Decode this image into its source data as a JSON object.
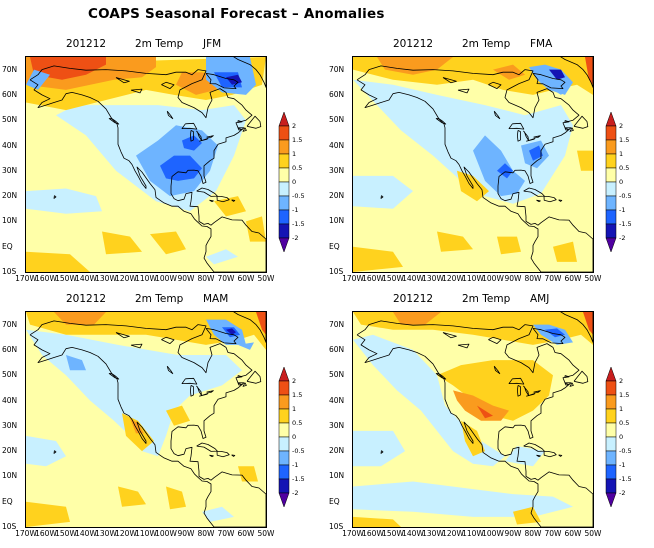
{
  "title": "COAPS Seasonal Forecast – Anomalies",
  "panels": [
    {
      "date": "201212",
      "variable": "2m Temp",
      "season": "JFM"
    },
    {
      "date": "201212",
      "variable": "2m Temp",
      "season": "FMA"
    },
    {
      "date": "201212",
      "variable": "2m Temp",
      "season": "MAM"
    },
    {
      "date": "201212",
      "variable": "2m Temp",
      "season": "AMJ"
    }
  ],
  "lat_labels": [
    "70N",
    "60N",
    "50N",
    "40N",
    "30N",
    "20N",
    "10N",
    "EQ",
    "10S"
  ],
  "lon_labels": [
    "170W",
    "160W",
    "150W",
    "140W",
    "130W",
    "120W",
    "110W",
    "100W",
    "90W",
    "80W",
    "70W",
    "60W",
    "50W"
  ],
  "colorbar_labels": [
    "2",
    "1.5",
    "1",
    "0.5",
    "0",
    "-0.5",
    "-1",
    "-1.5",
    "-2"
  ],
  "colorbar_colors": [
    "#c81e1e",
    "#ee5014",
    "#fa9b1e",
    "#ffd21e",
    "#ffffa8",
    "#c8f0ff",
    "#6eb4ff",
    "#1e64ff",
    "#1414b4",
    "#5000a0"
  ],
  "colors": {
    "neutral": "#ffffa8",
    "warm_weak": "#ffd21e",
    "warm": "#fa9b1e",
    "warm_strong": "#ee5014",
    "hot": "#c81e1e",
    "cool_weak": "#c8f0ff",
    "cool": "#6eb4ff",
    "cold": "#1e64ff",
    "cold_strong": "#1414b4",
    "coastline": "#000000"
  }
}
